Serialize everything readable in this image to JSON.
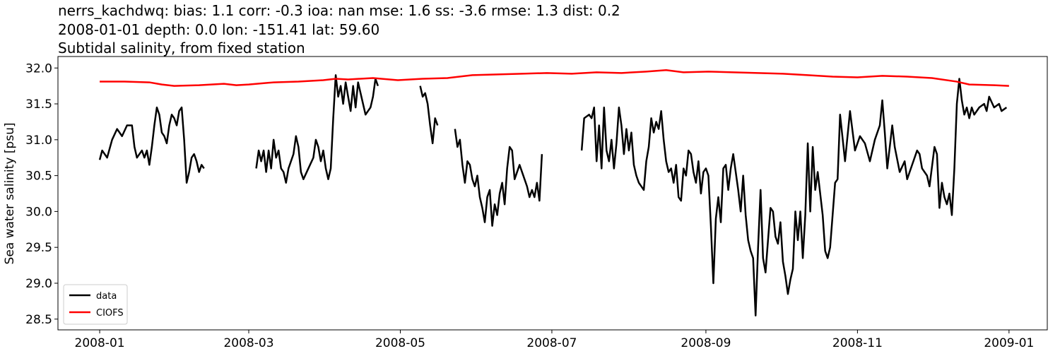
{
  "chart_data": {
    "type": "line",
    "title": "nerrs_kachdwq: bias: 1.1  corr: -0.3  ioa: nan  mse: 1.6  ss: -3.6  rmse: 1.3  dist: 0.2",
    "subtitle": "2008-01-01 depth: 0.0 lon: -151.41 lat: 59.60",
    "subtitle2": "Subtidal salinity, from fixed station",
    "y_label": "Sea water salinity [psu]",
    "legend": "lower left",
    "xlim": [
      -16.8,
      381.4
    ],
    "ylim": [
      28.35,
      32.16
    ],
    "xticks": [
      {
        "value": 0,
        "label": "2008-01"
      },
      {
        "value": 60,
        "label": "2008-03"
      },
      {
        "value": 121,
        "label": "2008-05"
      },
      {
        "value": 182,
        "label": "2008-07"
      },
      {
        "value": 244,
        "label": "2008-09"
      },
      {
        "value": 305,
        "label": "2008-11"
      },
      {
        "value": 366,
        "label": "2009-01"
      }
    ],
    "yticks": [
      28.5,
      {
        "value": 29,
        "label": "29.0"
      },
      29.5,
      {
        "value": 30,
        "label": "30.0"
      },
      30.5,
      {
        "value": 31,
        "label": "31.0"
      },
      31.5,
      {
        "value": 32,
        "label": "32.0"
      }
    ],
    "series": [
      {
        "name": "data",
        "color": "#000000",
        "x": [
          0,
          1,
          3,
          5,
          7,
          9,
          11,
          13,
          14,
          15,
          17,
          18,
          19,
          20,
          21,
          22,
          23,
          24,
          25,
          26,
          27,
          28,
          29,
          30,
          31,
          32,
          33,
          34,
          35,
          36,
          37,
          38,
          39,
          40,
          41,
          42,
          50,
          63,
          64,
          65,
          66,
          67,
          68,
          69,
          70,
          71,
          72,
          73,
          74,
          75,
          76,
          78,
          79,
          80,
          81,
          82,
          84,
          86,
          87,
          88,
          89,
          90,
          91,
          92,
          93,
          94,
          95,
          96,
          97,
          98,
          99,
          100,
          101,
          102,
          103,
          104,
          105,
          106,
          107,
          108,
          109,
          110,
          111,
          112,
          120,
          129,
          130,
          131,
          132,
          133,
          134,
          135,
          136,
          140,
          143,
          144,
          145,
          146,
          147,
          148,
          149,
          150,
          151,
          152,
          153,
          154,
          155,
          156,
          157,
          158,
          159,
          160,
          161,
          162,
          163,
          164,
          165,
          166,
          167,
          168,
          169,
          170,
          171,
          172,
          173,
          174,
          175,
          176,
          177,
          178,
          186,
          194,
          195,
          197,
          198,
          199,
          200,
          201,
          202,
          203,
          204,
          205,
          206,
          207,
          208,
          209,
          210,
          211,
          212,
          213,
          214,
          215,
          216,
          217,
          218,
          219,
          220,
          221,
          222,
          223,
          224,
          225,
          226,
          227,
          228,
          229,
          230,
          231,
          232,
          233,
          234,
          235,
          236,
          237,
          238,
          239,
          240,
          241,
          242,
          243,
          244,
          245,
          246,
          247,
          248,
          249,
          250,
          251,
          252,
          253,
          254,
          255,
          256,
          257,
          258,
          259,
          260,
          261,
          262,
          263,
          264,
          265,
          266,
          267,
          268,
          269,
          270,
          271,
          272,
          273,
          274,
          275,
          276,
          277,
          278,
          279,
          280,
          281,
          282,
          283,
          284,
          285,
          286,
          287,
          288,
          289,
          290,
          291,
          292,
          293,
          294,
          295,
          296,
          297,
          298,
          300,
          302,
          304,
          306,
          308,
          310,
          312,
          314,
          315,
          316,
          317,
          319,
          320,
          322,
          324,
          325,
          327,
          329,
          330,
          331,
          333,
          334,
          336,
          337,
          338,
          339,
          340,
          341,
          342,
          343,
          344,
          345,
          346,
          347,
          348,
          349,
          350,
          351,
          352,
          354,
          356,
          357,
          358,
          360,
          362,
          363,
          365
        ],
        "values": [
          30.72,
          30.85,
          30.75,
          31.0,
          31.15,
          31.05,
          31.2,
          31.2,
          30.9,
          30.75,
          30.85,
          30.75,
          30.85,
          30.65,
          30.9,
          31.2,
          31.45,
          31.35,
          31.1,
          31.05,
          30.95,
          31.2,
          31.35,
          31.3,
          31.2,
          31.4,
          31.45,
          31.0,
          30.4,
          30.55,
          30.75,
          30.8,
          30.7,
          30.55,
          30.65,
          30.6,
          null,
          30.6,
          30.85,
          30.7,
          30.85,
          30.55,
          30.85,
          30.6,
          31.0,
          30.75,
          30.85,
          30.6,
          30.55,
          30.4,
          30.6,
          30.8,
          31.05,
          30.9,
          30.55,
          30.45,
          30.6,
          30.75,
          31.0,
          30.9,
          30.7,
          30.85,
          30.6,
          30.45,
          30.6,
          31.3,
          31.9,
          31.6,
          31.75,
          31.5,
          31.8,
          31.6,
          31.4,
          31.75,
          31.45,
          31.8,
          31.65,
          31.5,
          31.35,
          31.4,
          31.45,
          31.6,
          31.85,
          31.75,
          null,
          31.75,
          31.6,
          31.65,
          31.5,
          31.2,
          30.95,
          31.3,
          31.2,
          null,
          31.15,
          30.9,
          31.0,
          30.65,
          30.4,
          30.7,
          30.65,
          30.45,
          30.35,
          30.5,
          30.2,
          30.05,
          29.85,
          30.2,
          30.3,
          29.8,
          30.1,
          29.95,
          30.25,
          30.4,
          30.1,
          30.6,
          30.9,
          30.85,
          30.45,
          30.55,
          30.65,
          30.55,
          30.45,
          30.35,
          30.2,
          30.3,
          30.2,
          30.4,
          30.15,
          30.8,
          null,
          30.85,
          31.3,
          31.35,
          31.3,
          31.45,
          30.7,
          31.2,
          30.6,
          31.45,
          30.85,
          30.7,
          31.0,
          30.6,
          30.95,
          31.45,
          31.2,
          30.8,
          31.15,
          30.85,
          31.1,
          30.65,
          30.5,
          30.4,
          30.35,
          30.3,
          30.7,
          30.9,
          31.3,
          31.1,
          31.25,
          31.15,
          31.4,
          31.0,
          30.7,
          30.55,
          30.6,
          30.4,
          30.65,
          30.2,
          30.15,
          30.6,
          30.5,
          30.85,
          30.8,
          30.55,
          30.4,
          30.7,
          30.25,
          30.55,
          30.6,
          30.5,
          29.8,
          29.0,
          29.9,
          30.2,
          29.85,
          30.6,
          30.65,
          30.3,
          30.6,
          30.8,
          30.55,
          30.3,
          30.0,
          30.5,
          29.95,
          29.6,
          29.45,
          29.35,
          28.55,
          29.5,
          30.3,
          29.35,
          29.15,
          29.6,
          30.05,
          30.0,
          29.65,
          29.55,
          29.85,
          29.3,
          29.1,
          28.85,
          29.05,
          29.2,
          30.0,
          29.6,
          30.0,
          29.35,
          29.95,
          30.95,
          30.0,
          30.9,
          30.3,
          30.55,
          30.25,
          29.95,
          29.45,
          29.35,
          29.5,
          29.95,
          30.4,
          30.45,
          31.35,
          30.7,
          31.4,
          30.85,
          31.05,
          30.95,
          30.7,
          31.0,
          31.2,
          31.55,
          31.1,
          30.6,
          31.2,
          30.9,
          30.55,
          30.7,
          30.45,
          30.65,
          30.85,
          30.8,
          30.6,
          30.5,
          30.35,
          30.9,
          30.8,
          30.05,
          30.4,
          30.2,
          30.1,
          30.25,
          29.95,
          30.6,
          31.5,
          31.85,
          31.55,
          31.35,
          31.45,
          31.3,
          31.45,
          31.35,
          31.45,
          31.5,
          31.4,
          31.6,
          31.45,
          31.5,
          31.4,
          31.45
        ]
      },
      {
        "name": "CIOFS",
        "color": "#ff0000",
        "x": [
          0,
          10,
          20,
          25,
          30,
          40,
          50,
          55,
          60,
          70,
          80,
          90,
          95,
          100,
          110,
          120,
          130,
          140,
          150,
          160,
          170,
          180,
          190,
          200,
          210,
          220,
          228,
          235,
          245,
          255,
          265,
          275,
          285,
          295,
          305,
          315,
          325,
          335,
          345,
          350,
          360,
          366
        ],
        "values": [
          31.81,
          31.81,
          31.8,
          31.77,
          31.75,
          31.76,
          31.78,
          31.76,
          31.77,
          31.8,
          31.81,
          31.83,
          31.85,
          31.84,
          31.86,
          31.83,
          31.85,
          31.86,
          31.9,
          31.91,
          31.92,
          31.93,
          31.92,
          31.94,
          31.93,
          31.95,
          31.97,
          31.94,
          31.95,
          31.94,
          31.93,
          31.92,
          31.9,
          31.88,
          31.87,
          31.89,
          31.88,
          31.86,
          31.81,
          31.77,
          31.76,
          31.75
        ]
      }
    ]
  }
}
